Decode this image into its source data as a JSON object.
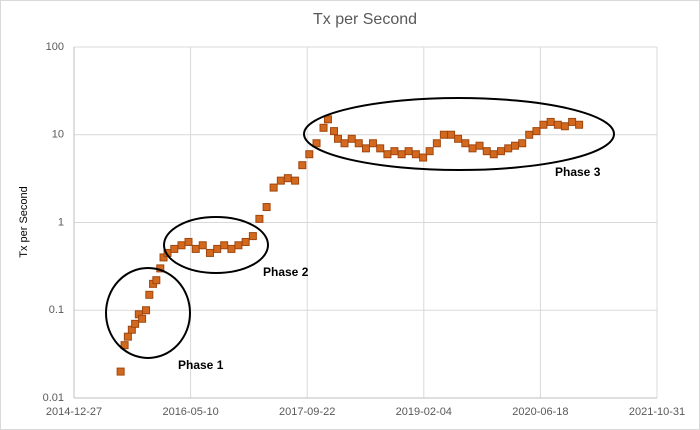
{
  "chart_data": {
    "type": "scatter",
    "title": "Tx per Second",
    "y_label": "Tx per Second",
    "log_y": true,
    "grid": true,
    "color": "#d2691e",
    "xlim": [
      "2014-12-27",
      "2021-10-31"
    ],
    "xticks": [
      "2014-12-27",
      "2016-05-10",
      "2017-09-22",
      "2019-02-04",
      "2020-06-18",
      "2021-10-31"
    ],
    "ylim": [
      0.01,
      100
    ],
    "yticks": [
      0.01,
      0.1,
      1,
      10,
      100
    ],
    "x": [
      "2015-07-15",
      "2015-08-01",
      "2015-08-15",
      "2015-09-01",
      "2015-09-15",
      "2015-10-01",
      "2015-10-15",
      "2015-11-01",
      "2015-11-15",
      "2015-12-01",
      "2015-12-15",
      "2016-01-01",
      "2016-01-15",
      "2016-02-01",
      "2016-03-01",
      "2016-04-01",
      "2016-05-01",
      "2016-06-01",
      "2016-07-01",
      "2016-08-01",
      "2016-09-01",
      "2016-10-01",
      "2016-11-01",
      "2016-12-01",
      "2017-01-01",
      "2017-02-01",
      "2017-03-01",
      "2017-04-01",
      "2017-05-01",
      "2017-06-01",
      "2017-07-01",
      "2017-08-01",
      "2017-09-01",
      "2017-10-01",
      "2017-11-01",
      "2017-12-01",
      "2017-12-20",
      "2018-01-15",
      "2018-02-01",
      "2018-03-01",
      "2018-04-01",
      "2018-05-01",
      "2018-06-01",
      "2018-07-01",
      "2018-08-01",
      "2018-09-01",
      "2018-10-01",
      "2018-11-01",
      "2018-12-01",
      "2019-01-01",
      "2019-02-01",
      "2019-03-01",
      "2019-04-01",
      "2019-05-01",
      "2019-06-01",
      "2019-07-01",
      "2019-08-01",
      "2019-09-01",
      "2019-10-01",
      "2019-11-01",
      "2019-12-01",
      "2020-01-01",
      "2020-02-01",
      "2020-03-01",
      "2020-04-01",
      "2020-05-01",
      "2020-06-01",
      "2020-07-01",
      "2020-08-01",
      "2020-09-01",
      "2020-10-01",
      "2020-11-01",
      "2020-12-01"
    ],
    "values": [
      0.02,
      0.04,
      0.05,
      0.06,
      0.07,
      0.09,
      0.08,
      0.1,
      0.15,
      0.2,
      0.22,
      0.3,
      0.4,
      0.45,
      0.5,
      0.55,
      0.6,
      0.5,
      0.55,
      0.45,
      0.5,
      0.55,
      0.5,
      0.55,
      0.6,
      0.7,
      1.1,
      1.5,
      2.5,
      3,
      3.2,
      3,
      4.5,
      6,
      8,
      12,
      15,
      11,
      9,
      8,
      9,
      8,
      7,
      8,
      7,
      6,
      6.5,
      6,
      6.5,
      6,
      5.5,
      6.5,
      8,
      10,
      10,
      9,
      8,
      7,
      7.5,
      6.5,
      6,
      6.5,
      7,
      7.5,
      8,
      10,
      11,
      13,
      14,
      13,
      12.5,
      14,
      13
    ],
    "annotations": [
      "Phase 1",
      "Phase 2",
      "Phase 3"
    ]
  }
}
